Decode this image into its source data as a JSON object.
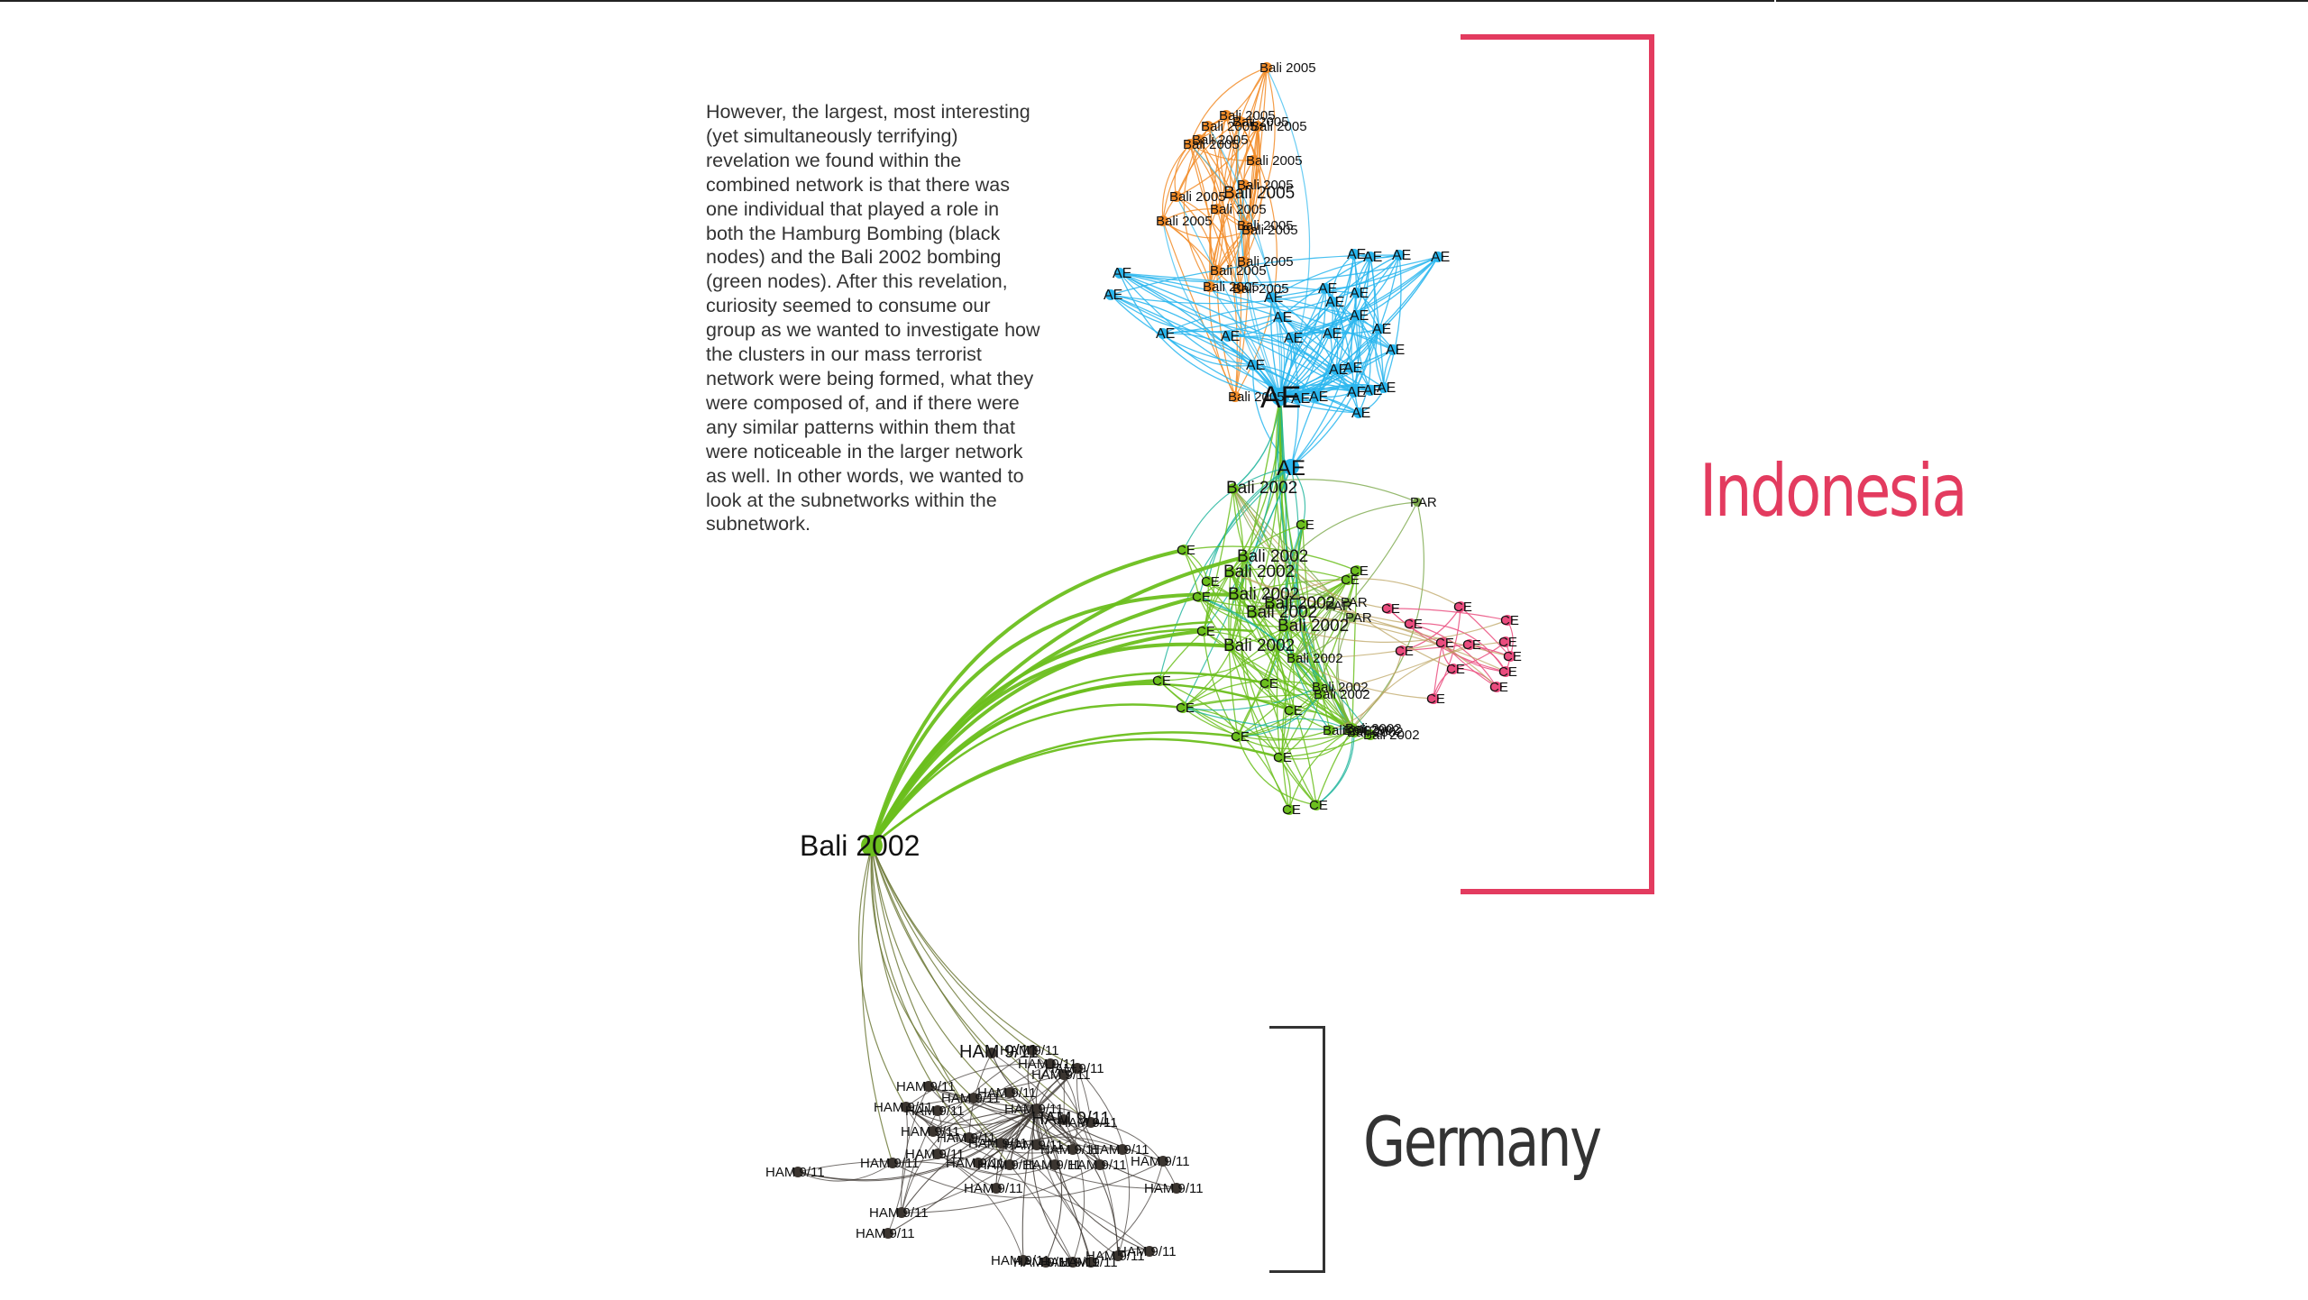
{
  "slide": {
    "paragraph": "However, the largest, most interesting (yet simultaneously terrifying) revelation we found within the combined network is that there was one individual that played a role in both the Hamburg Bombing (black nodes) and the Bali 2002 bombing (green nodes). After this revelation, curiosity seemed to consume our group as we wanted to investigate how the clusters in our mass terrorist network were being formed, what they were composed of, and if there were any similar patterns within them that were noticeable in the larger network as well. In other words, we wanted to look at the subnetworks within the subnetwork.",
    "label_indonesia": "Indonesia",
    "label_germany": "Germany"
  },
  "colors": {
    "indonesia_accent": "#e33b5f",
    "germany_accent": "#333333",
    "bali2005": "#f28c28",
    "ae": "#29b6ee",
    "bali2002": "#6cbf1e",
    "ce_pink": "#ea4c7e",
    "teal": "#19b39a",
    "ham": "#3b3530"
  },
  "network": {
    "bali2005_nodes": [
      "Bali 2005",
      "Bali 2005",
      "Bali 2005",
      "Bali 2005",
      "Bali 2005",
      "Bali 2005",
      "Bali 2005",
      "Bali 2005",
      "Bali 2005",
      "Bali 2005",
      "Bali 2005",
      "Bali 2005",
      "Bali 2005",
      "Bali 2005",
      "Bali 2005",
      "Bali 2005",
      "Bali 2005",
      "Bali 2005",
      "Bali 2005",
      "Bali 2005"
    ],
    "ae_nodes": [
      "AE",
      "AE",
      "AE",
      "AE",
      "AE",
      "AE",
      "AE",
      "AE",
      "AE",
      "AE",
      "AE",
      "AE",
      "AE",
      "AE",
      "AE",
      "AE",
      "AE",
      "AE",
      "AE",
      "AE",
      "AE",
      "AE",
      "AE",
      "AE",
      "AE",
      "AE",
      "AE"
    ],
    "ae_hub": "AE",
    "bali2002_nodes": [
      "Bali 2002",
      "Bali 2002",
      "Bali 2002",
      "Bali 2002",
      "Bali 2002",
      "Bali 2002",
      "Bali 2002",
      "Bali 2002",
      "Bali 2002",
      "Bali 2002",
      "Bali 2002",
      "Bali 2002",
      "Bali 2002",
      "Bali 2002",
      "Bali 2002",
      "Bali 2002"
    ],
    "ce_nodes": [
      "CE",
      "CE",
      "CE",
      "CE",
      "CE",
      "CE",
      "CE",
      "CE",
      "CE",
      "CE",
      "CE",
      "CE",
      "CE",
      "CE",
      "CE",
      "CE",
      "CE",
      "CE",
      "CE",
      "CE",
      "CE",
      "CE",
      "CE",
      "CE"
    ],
    "par_nodes": [
      "PAR",
      "PAR",
      "PAR",
      "PAR"
    ],
    "bridge_node": "Bali 2002",
    "ham_nodes": [
      "HAM 9/11",
      "HAM 9/11",
      "HAM 9/11",
      "HAM 9/11",
      "HAM 9/11",
      "HAM 9/11",
      "HAM 9/11",
      "HAM 9/11",
      "HAM 9/11",
      "HAM 9/11",
      "HAM 9/11",
      "HAM 9/11",
      "HAM 9/11",
      "HAM 9/11",
      "HAM 9/11",
      "HAM 9/11",
      "HAM 9/11",
      "HAM 9/11",
      "HAM 9/11",
      "HAM 9/11",
      "HAM 9/11",
      "HAM 9/11",
      "HAM 9/11",
      "HAM 9/11",
      "HAM 9/11",
      "HAM 9/11"
    ]
  }
}
